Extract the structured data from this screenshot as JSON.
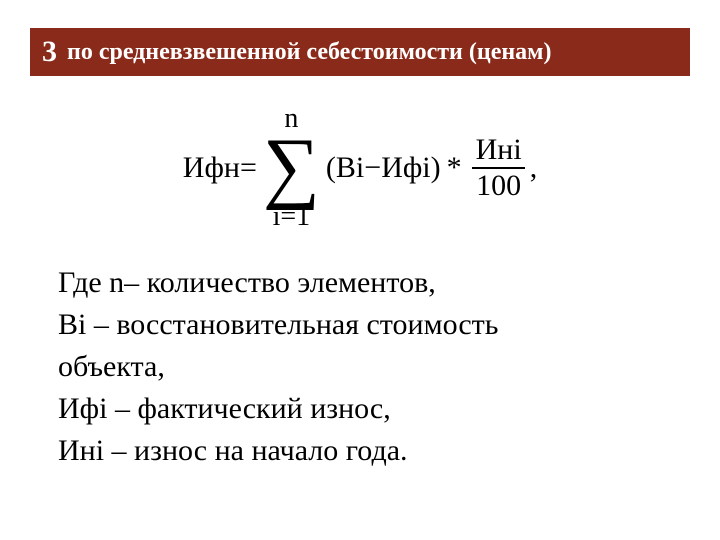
{
  "header": {
    "number": "3",
    "title": "по средневзвешенной себестоимости (ценам)",
    "bg_color": "#8a2a1a",
    "text_color": "#ffffff",
    "title_fontsize": 24,
    "number_fontsize": 30
  },
  "formula": {
    "lhs": "Ифн=",
    "sum_upper": "n",
    "sum_lower": "i=1",
    "sigma_glyph": "∑",
    "paren_open": "(",
    "term_B": "Вi",
    "minus": "−",
    "term_Ifi": "Ифi",
    "paren_close": ")",
    "mult": "*",
    "frac_top": "Инi",
    "frac_bot": "100",
    "trailing": ",",
    "text_color": "#000000",
    "base_fontsize": 30,
    "sigma_fontsize": 80,
    "limit_fontsize": 28
  },
  "definitions": {
    "line1": "Где n– количество элементов,",
    "line2": "Вi – восстановительная стоимость",
    "line3": "объекта,",
    "line4": "Ифi – фактический износ,",
    "line5": "Инi – износ на начало года.",
    "fontsize": 30,
    "color": "#000000"
  },
  "background_color": "#ffffff"
}
